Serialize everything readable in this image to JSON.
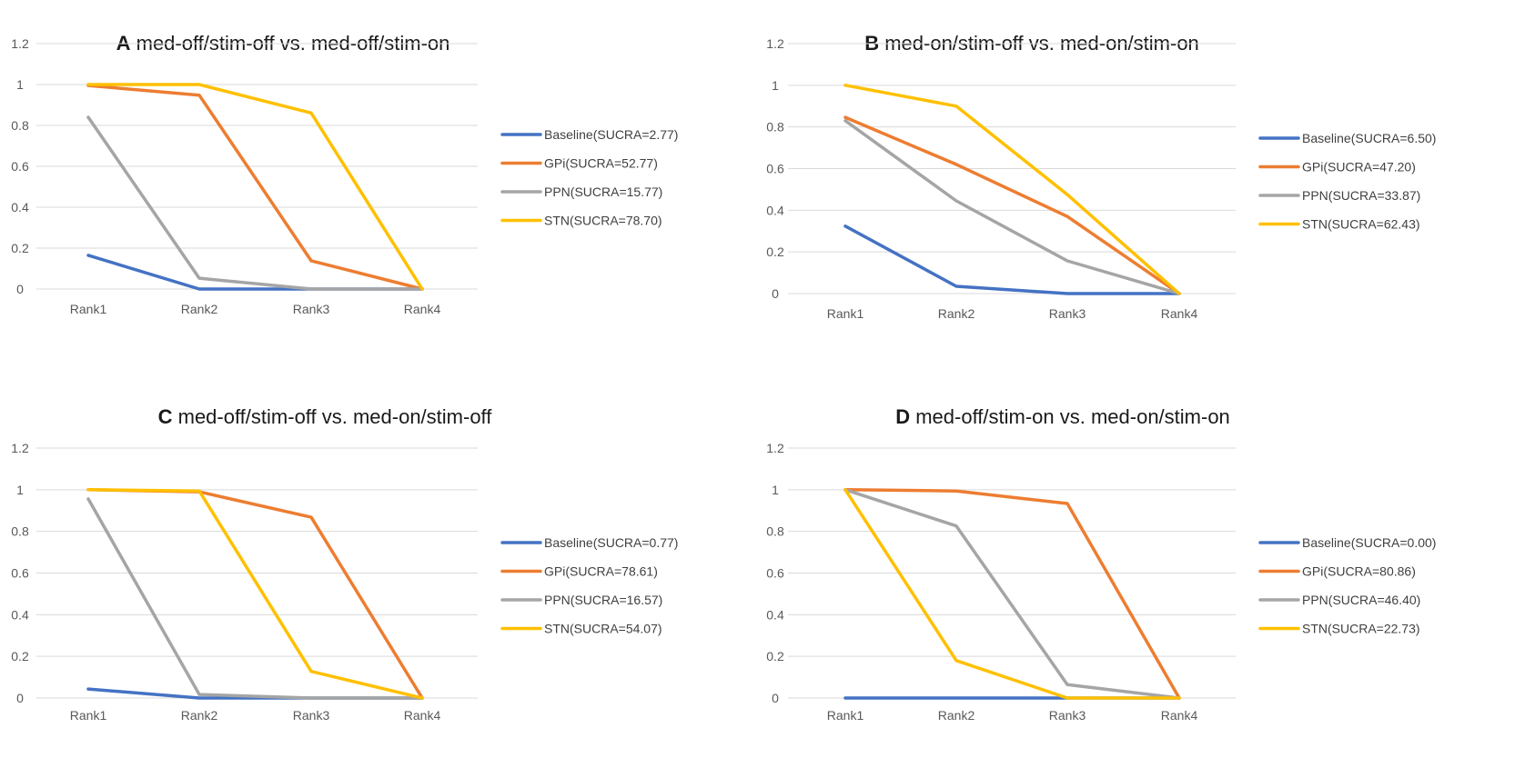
{
  "chart_data": [
    {
      "type": "line",
      "letter": "A",
      "title": "med-off/stim-off vs. med-off/stim-on",
      "categories": [
        "Rank1",
        "Rank2",
        "Rank3",
        "Rank4"
      ],
      "yticks": [
        "0",
        "0.2",
        "0.4",
        "0.6",
        "0.8",
        "1",
        "1.2"
      ],
      "ylim": [
        0,
        1.2
      ],
      "grid": true,
      "legend_position": "right",
      "series": [
        {
          "name": "Baseline(SUCRA=2.77)",
          "color": "#4472C4",
          "values": [
            0.165,
            0.0,
            0.0,
            0.0
          ]
        },
        {
          "name": "GPi(SUCRA=52.77)",
          "color": "#ED7D31",
          "values": [
            0.995,
            0.948,
            0.138,
            0.0
          ]
        },
        {
          "name": "PPN(SUCRA=15.77)",
          "color": "#A5A5A5",
          "values": [
            0.84,
            0.053,
            0.0,
            0.0
          ]
        },
        {
          "name": "STN(SUCRA=78.70)",
          "color": "#FFC000",
          "values": [
            1.0,
            1.0,
            0.861,
            0.0
          ]
        }
      ]
    },
    {
      "type": "line",
      "letter": "B",
      "title": "med-on/stim-off vs. med-on/stim-on",
      "categories": [
        "Rank1",
        "Rank2",
        "Rank3",
        "Rank4"
      ],
      "yticks": [
        "0",
        "0.2",
        "0.4",
        "0.6",
        "0.8",
        "1",
        "1.2"
      ],
      "ylim": [
        0,
        1.2
      ],
      "grid": true,
      "legend_position": "right",
      "series": [
        {
          "name": "Baseline(SUCRA=6.50)",
          "color": "#4472C4",
          "values": [
            0.324,
            0.035,
            0.0,
            0.0
          ]
        },
        {
          "name": "GPi(SUCRA=47.20)",
          "color": "#ED7D31",
          "values": [
            0.846,
            0.62,
            0.37,
            0.0
          ]
        },
        {
          "name": "PPN(SUCRA=33.87)",
          "color": "#A5A5A5",
          "values": [
            0.83,
            0.445,
            0.157,
            0.0
          ]
        },
        {
          "name": "STN(SUCRA=62.43)",
          "color": "#FFC000",
          "values": [
            1.0,
            0.9,
            0.475,
            0.0
          ]
        }
      ]
    },
    {
      "type": "line",
      "letter": "C",
      "title": "med-off/stim-off vs. med-on/stim-off",
      "categories": [
        "Rank1",
        "Rank2",
        "Rank3",
        "Rank4"
      ],
      "yticks": [
        "0",
        "0.2",
        "0.4",
        "0.6",
        "0.8",
        "1",
        "1.2"
      ],
      "ylim": [
        0,
        1.2
      ],
      "grid": true,
      "legend_position": "right",
      "series": [
        {
          "name": "Baseline(SUCRA=0.77)",
          "color": "#4472C4",
          "values": [
            0.043,
            0.0,
            0.0,
            0.0
          ]
        },
        {
          "name": "GPi(SUCRA=78.61)",
          "color": "#ED7D31",
          "values": [
            1.0,
            0.99,
            0.868,
            0.0
          ]
        },
        {
          "name": "PPN(SUCRA=16.57)",
          "color": "#A5A5A5",
          "values": [
            0.956,
            0.017,
            0.0,
            0.0
          ]
        },
        {
          "name": "STN(SUCRA=54.07)",
          "color": "#FFC000",
          "values": [
            1.0,
            0.994,
            0.128,
            0.0
          ]
        }
      ]
    },
    {
      "type": "line",
      "letter": "D",
      "title": "med-off/stim-on vs. med-on/stim-on",
      "categories": [
        "Rank1",
        "Rank2",
        "Rank3",
        "Rank4"
      ],
      "yticks": [
        "0",
        "0.2",
        "0.4",
        "0.6",
        "0.8",
        "1",
        "1.2"
      ],
      "ylim": [
        0,
        1.2
      ],
      "grid": true,
      "legend_position": "right",
      "series": [
        {
          "name": "Baseline(SUCRA=0.00)",
          "color": "#4472C4",
          "values": [
            0.0,
            0.0,
            0.0,
            0.0
          ]
        },
        {
          "name": "GPi(SUCRA=80.86)",
          "color": "#ED7D31",
          "values": [
            1.0,
            0.994,
            0.934,
            0.0
          ]
        },
        {
          "name": "PPN(SUCRA=46.40)",
          "color": "#A5A5A5",
          "values": [
            1.0,
            0.826,
            0.064,
            0.0
          ]
        },
        {
          "name": "STN(SUCRA=22.73)",
          "color": "#FFC000",
          "values": [
            1.0,
            0.18,
            0.0,
            0.0
          ]
        }
      ]
    }
  ]
}
